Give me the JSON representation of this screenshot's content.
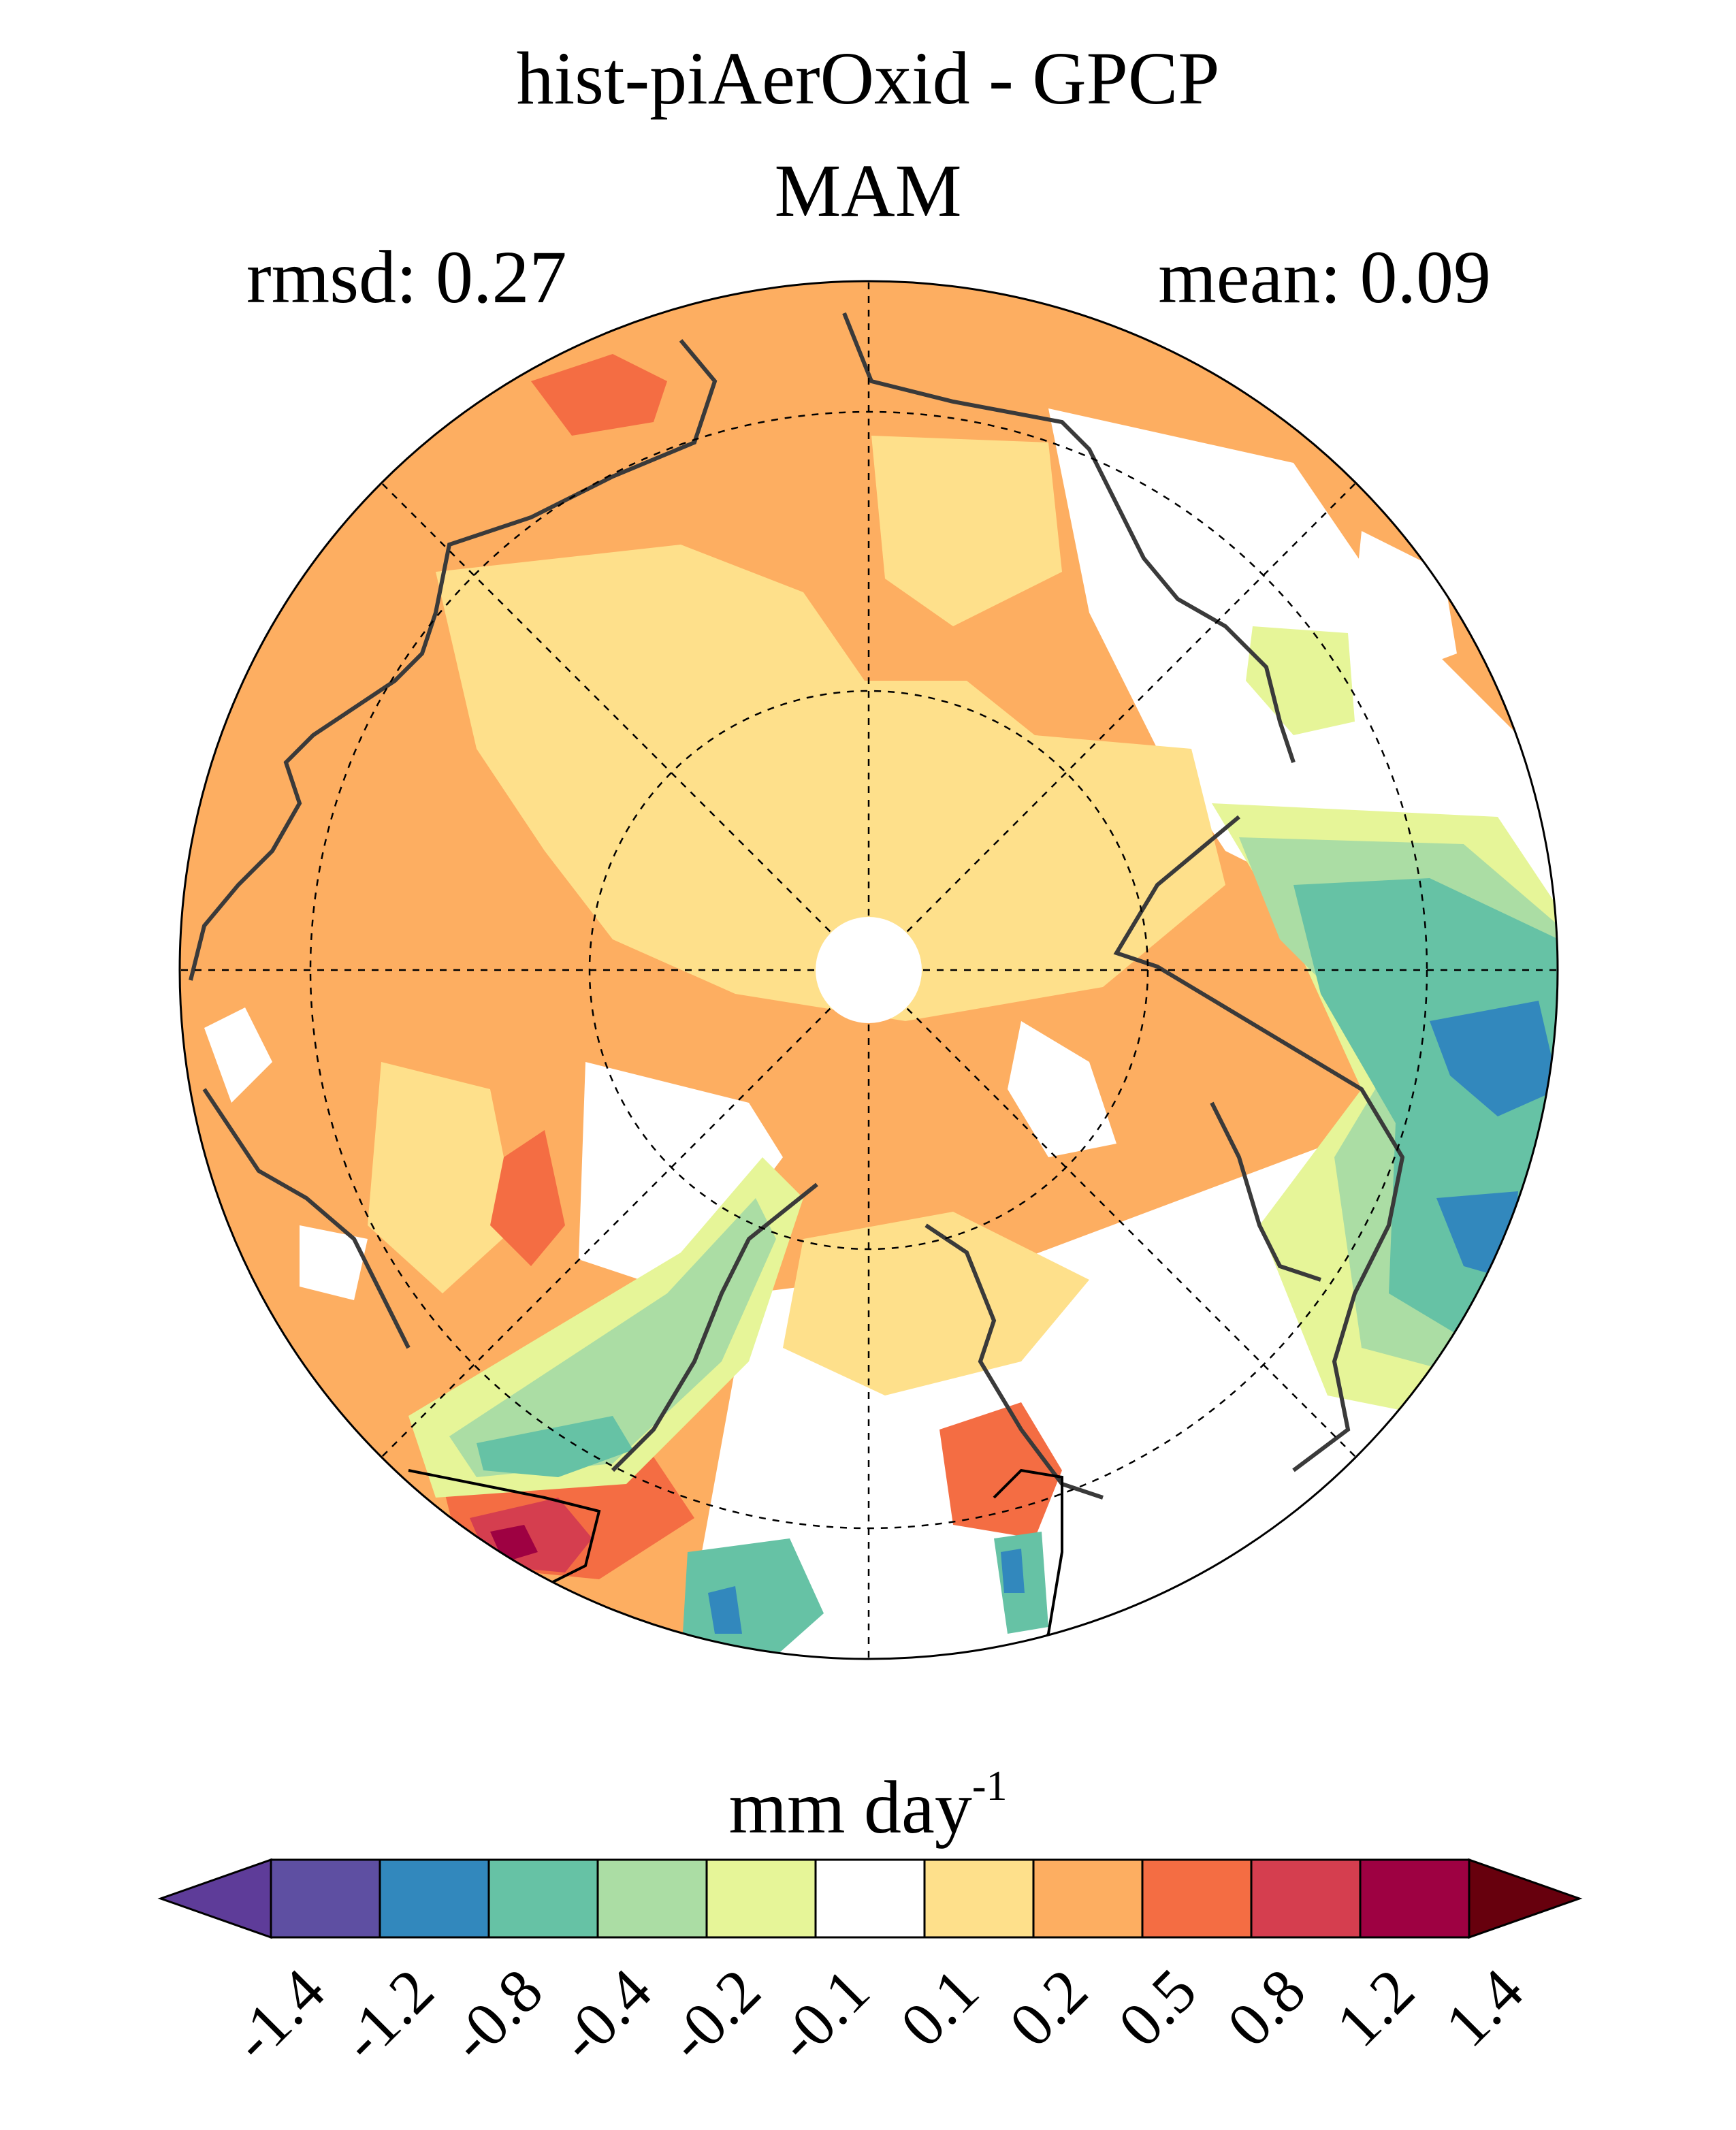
{
  "title": "hist-piAerOxid - GPCP",
  "season": "MAM",
  "stats": {
    "rmsd": "rmsd: 0.27",
    "mean": "mean: 0.09"
  },
  "colorbar": {
    "units": "mm day",
    "units_exponent": "-1",
    "ticks": [
      "-1.4",
      "-1.2",
      "-0.8",
      "-0.4",
      "-0.2",
      "-0.1",
      "0.1",
      "0.2",
      "0.5",
      "0.8",
      "1.2",
      "1.4"
    ],
    "colors": [
      "#5e3c99",
      "#5e4fa2",
      "#3288bd",
      "#66c2a5",
      "#abdda4",
      "#e6f598",
      "#ffffff",
      "#fee08b",
      "#fdae61",
      "#f46d43",
      "#d53e4f",
      "#9e0142",
      "#67000d"
    ]
  },
  "map": {
    "projection": "north polar stereographic",
    "colors": {
      "light_orange": "#fee08b",
      "orange": "#fdae61",
      "red_orange": "#f46d43",
      "red": "#d53e4f",
      "dark_red": "#9e0142",
      "light_green": "#e6f598",
      "green": "#abdda4",
      "teal": "#66c2a5",
      "blue": "#3288bd",
      "coast": "#3a3a3a"
    }
  }
}
